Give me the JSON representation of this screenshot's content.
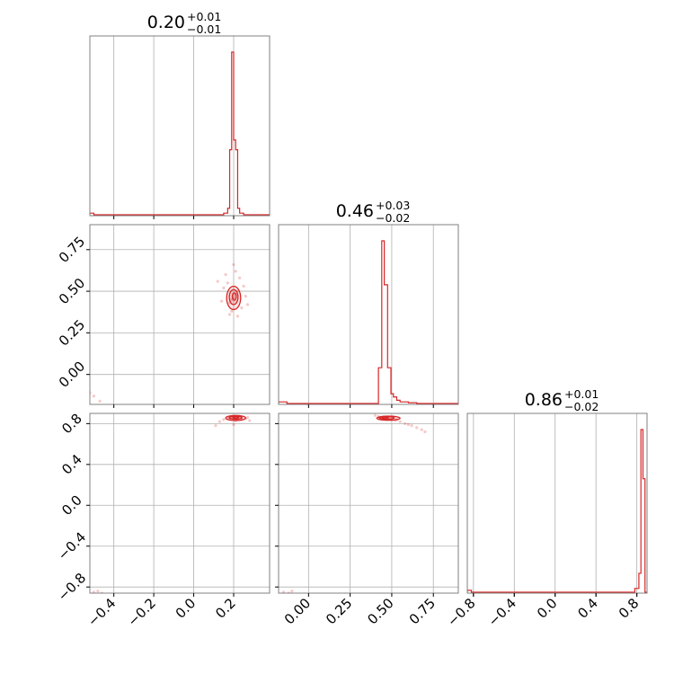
{
  "chart_data": {
    "type": "corner",
    "color": "#d62728",
    "grid": true,
    "parameters": [
      {
        "index": 0,
        "range": [
          -0.52,
          0.38
        ],
        "ticks": [
          -0.4,
          -0.2,
          0.0,
          0.2
        ],
        "tick_labels": [
          "−0.4",
          "−0.2",
          "0.0",
          "0.2"
        ],
        "title": {
          "value": "0.20",
          "plus": "+0.01",
          "minus": "−0.01"
        },
        "histogram": {
          "bins": [
            -0.52,
            -0.5,
            0.15,
            0.17,
            0.18,
            0.19,
            0.2,
            0.21,
            0.22,
            0.23,
            0.25,
            0.38
          ],
          "counts": [
            0.01,
            0.0,
            0.01,
            0.04,
            0.4,
            1.0,
            0.46,
            0.4,
            0.04,
            0.01,
            0.0
          ]
        }
      },
      {
        "index": 1,
        "range": [
          -0.18,
          0.9
        ],
        "ticks": [
          0.0,
          0.25,
          0.5,
          0.75
        ],
        "tick_labels": [
          "0.00",
          "0.25",
          "0.50",
          "0.75"
        ],
        "title": {
          "value": "0.46",
          "plus": "+0.03",
          "minus": "−0.02"
        },
        "histogram": {
          "bins": [
            -0.18,
            -0.13,
            0.42,
            0.44,
            0.455,
            0.475,
            0.495,
            0.51,
            0.53,
            0.55,
            0.6,
            0.65,
            0.9
          ],
          "counts": [
            0.01,
            0.0,
            0.22,
            1.0,
            0.73,
            0.22,
            0.06,
            0.04,
            0.02,
            0.01,
            0.005,
            0.0
          ]
        }
      },
      {
        "index": 2,
        "range": [
          -0.86,
          0.9
        ],
        "ticks": [
          -0.8,
          -0.4,
          0.0,
          0.4,
          0.8
        ],
        "tick_labels": [
          "−0.8",
          "−0.4",
          "0.0",
          "0.4",
          "0.8"
        ],
        "title": {
          "value": "0.86",
          "plus": "+0.01",
          "minus": "−0.02"
        },
        "histogram": {
          "bins": [
            -0.86,
            -0.82,
            0.78,
            0.82,
            0.84,
            0.86,
            0.88,
            0.9
          ],
          "counts": [
            0.01,
            0.0,
            0.02,
            0.1,
            0.86,
            0.6,
            0.0
          ]
        }
      }
    ],
    "pairs": [
      {
        "x": 0,
        "y": 1,
        "points": [
          [
            0.2,
            0.46
          ],
          [
            0.19,
            0.45
          ],
          [
            0.21,
            0.48
          ],
          [
            0.18,
            0.43
          ],
          [
            0.22,
            0.5
          ],
          [
            0.17,
            0.55
          ],
          [
            0.24,
            0.4
          ],
          [
            0.15,
            0.52
          ],
          [
            0.23,
            0.58
          ],
          [
            0.19,
            0.38
          ],
          [
            0.16,
            0.6
          ],
          [
            0.26,
            0.47
          ],
          [
            0.14,
            0.44
          ],
          [
            0.21,
            0.62
          ],
          [
            0.25,
            0.53
          ],
          [
            0.18,
            0.36
          ],
          [
            0.12,
            0.56
          ],
          [
            0.27,
            0.42
          ],
          [
            0.2,
            0.66
          ],
          [
            0.22,
            0.35
          ],
          [
            -0.5,
            -0.13
          ],
          [
            -0.47,
            -0.16
          ],
          [
            -0.52,
            -0.11
          ]
        ],
        "contours": [
          {
            "center": [
              0.2,
              0.46
            ],
            "rx": 0.035,
            "ry": 0.07
          },
          {
            "center": [
              0.2,
              0.465
            ],
            "rx": 0.022,
            "ry": 0.045
          },
          {
            "center": [
              0.203,
              0.468
            ],
            "rx": 0.01,
            "ry": 0.022
          }
        ]
      },
      {
        "x": 0,
        "y": 2,
        "points": [
          [
            0.19,
            0.86
          ],
          [
            0.22,
            0.85
          ],
          [
            0.2,
            0.87
          ],
          [
            0.24,
            0.84
          ],
          [
            0.17,
            0.86
          ],
          [
            0.26,
            0.85
          ],
          [
            0.21,
            0.83
          ],
          [
            0.15,
            0.84
          ],
          [
            0.23,
            0.87
          ],
          [
            0.18,
            0.85
          ],
          [
            0.13,
            0.82
          ],
          [
            0.27,
            0.86
          ],
          [
            0.2,
            0.79
          ],
          [
            0.11,
            0.78
          ],
          [
            0.28,
            0.83
          ],
          [
            -0.5,
            -0.85
          ],
          [
            -0.46,
            -0.86
          ],
          [
            -0.48,
            -0.84
          ]
        ],
        "contours": [
          {
            "center": [
              0.21,
              0.855
            ],
            "rx": 0.05,
            "ry": 0.025
          },
          {
            "center": [
              0.21,
              0.858
            ],
            "rx": 0.032,
            "ry": 0.014
          },
          {
            "center": [
              0.21,
              0.86
            ],
            "rx": 0.014,
            "ry": 0.007
          }
        ]
      },
      {
        "x": 1,
        "y": 2,
        "points": [
          [
            0.45,
            0.86
          ],
          [
            0.48,
            0.85
          ],
          [
            0.52,
            0.83
          ],
          [
            0.5,
            0.84
          ],
          [
            0.42,
            0.87
          ],
          [
            0.55,
            0.82
          ],
          [
            0.58,
            0.8
          ],
          [
            0.6,
            0.79
          ],
          [
            0.62,
            0.78
          ],
          [
            0.65,
            0.76
          ],
          [
            0.68,
            0.74
          ],
          [
            0.7,
            0.72
          ],
          [
            0.47,
            0.86
          ],
          [
            0.53,
            0.84
          ],
          [
            0.4,
            0.88
          ],
          [
            -0.15,
            -0.85
          ],
          [
            -0.12,
            -0.86
          ],
          [
            -0.1,
            -0.84
          ]
        ],
        "contours": [
          {
            "center": [
              0.48,
              0.853
            ],
            "rx": 0.07,
            "ry": 0.02
          },
          {
            "center": [
              0.47,
              0.856
            ],
            "rx": 0.045,
            "ry": 0.012
          },
          {
            "center": [
              0.46,
              0.86
            ],
            "rx": 0.02,
            "ry": 0.006
          }
        ]
      }
    ]
  }
}
